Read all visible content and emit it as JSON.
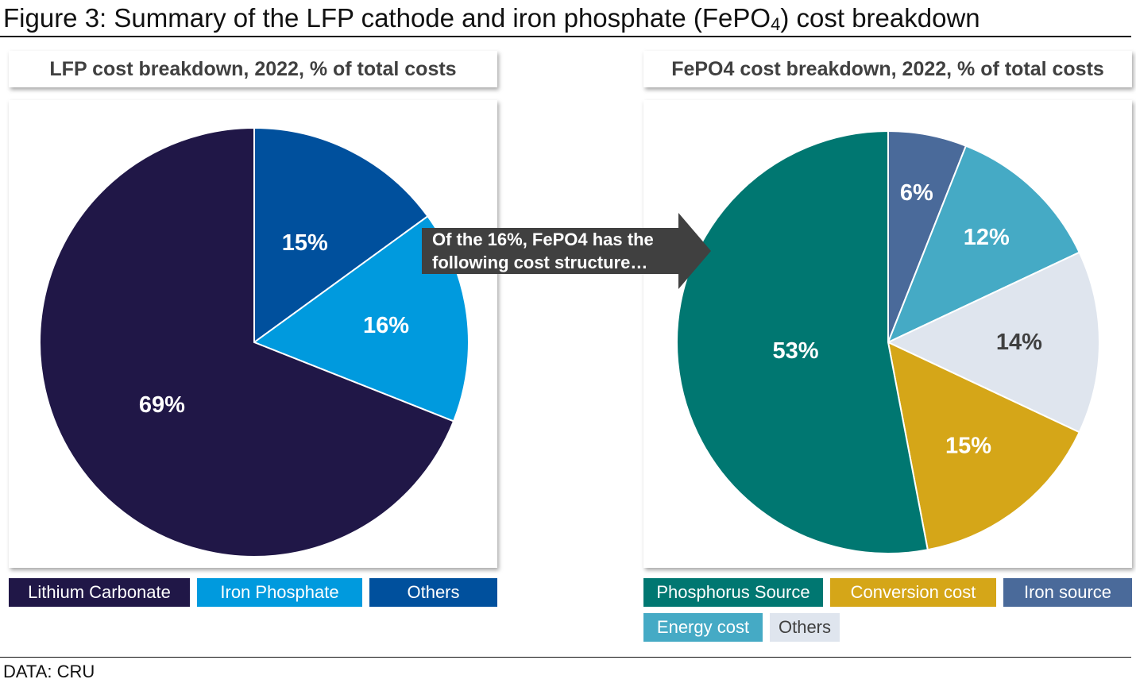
{
  "figure": {
    "title_main": "Figure 3: Summary of the LFP cathode and iron phosphate (FePO",
    "title_sub": "4",
    "title_end": ") cost breakdown",
    "source": "DATA: CRU"
  },
  "callout": {
    "text": "Of the 16%, FePO4 has the following cost structure…"
  },
  "chart_data": [
    {
      "type": "pie",
      "title": "LFP cost breakdown, 2022, %  of total costs",
      "slices": [
        {
          "name": "Others",
          "value": 15,
          "label": "15%",
          "color": "#00509d",
          "label_color": "#ffffff"
        },
        {
          "name": "Iron Phosphate",
          "value": 16,
          "label": "16%",
          "color": "#009ade",
          "label_color": "#ffffff"
        },
        {
          "name": "Lithium Carbonate",
          "value": 69,
          "label": "69%",
          "color": "#201747",
          "label_color": "#ffffff"
        }
      ],
      "legend": [
        {
          "name": "Lithium Carbonate",
          "color": "#201747",
          "text_color": "#ffffff"
        },
        {
          "name": "Iron Phosphate",
          "color": "#009ade",
          "text_color": "#ffffff"
        },
        {
          "name": "Others",
          "color": "#00509d",
          "text_color": "#ffffff"
        }
      ]
    },
    {
      "type": "pie",
      "title": "FePO4 cost breakdown, 2022, %  of total costs",
      "slices": [
        {
          "name": "Iron source",
          "value": 6,
          "label": "6%",
          "color": "#4a6a9a",
          "label_color": "#ffffff"
        },
        {
          "name": "Energy cost",
          "value": 12,
          "label": "12%",
          "color": "#45aac5",
          "label_color": "#ffffff"
        },
        {
          "name": "Others",
          "value": 14,
          "label": "14%",
          "color": "#dfe5ee",
          "label_color": "#404040"
        },
        {
          "name": "Conversion cost",
          "value": 15,
          "label": "15%",
          "color": "#d5a618",
          "label_color": "#ffffff"
        },
        {
          "name": "Phosphorus Source",
          "value": 53,
          "label": "53%",
          "color": "#007771",
          "label_color": "#ffffff"
        }
      ],
      "legend": [
        {
          "name": "Phosphorus Source",
          "color": "#007771",
          "text_color": "#ffffff"
        },
        {
          "name": "Conversion cost",
          "color": "#d5a618",
          "text_color": "#ffffff"
        },
        {
          "name": "Iron source",
          "color": "#4a6a9a",
          "text_color": "#ffffff"
        },
        {
          "name": "Energy cost",
          "color": "#45aac5",
          "text_color": "#ffffff"
        },
        {
          "name": "Others",
          "color": "#dfe5ee",
          "text_color": "#404040"
        }
      ]
    }
  ]
}
